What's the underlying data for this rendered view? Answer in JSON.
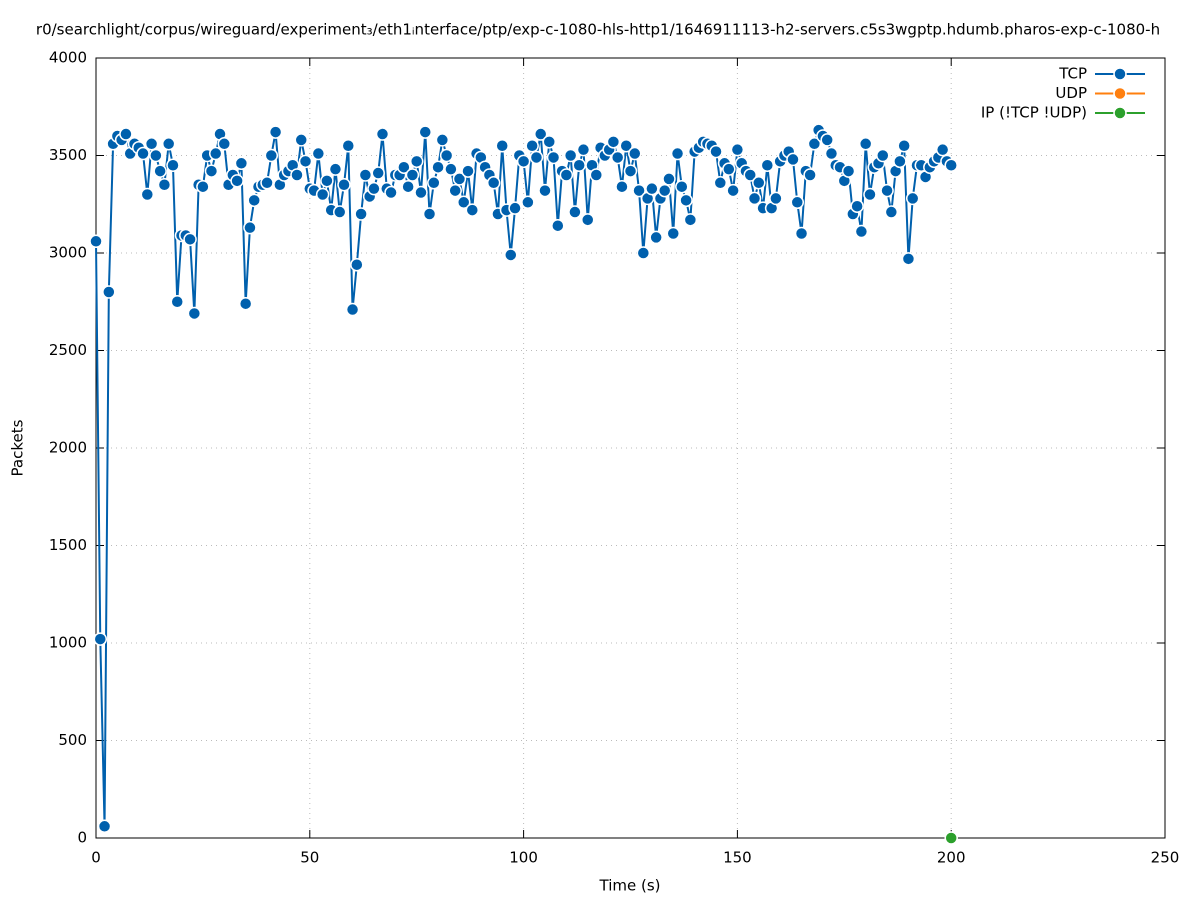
{
  "chart_data": {
    "type": "line",
    "title": "r0/searchlight/corpus/wireguard/experiment₃/eth1ᵢnterface/ptp/exp-c-1080-hls-http1/1646911113-h2-servers.c5s3wgptp.hdumb.pharos-exp-c-1080-h",
    "x_label": "Time (s)",
    "y_label": "Packets",
    "xlim": [
      0,
      250
    ],
    "xticks": [
      0,
      50,
      100,
      150,
      200,
      250
    ],
    "ylim": [
      0,
      4000
    ],
    "yticks": [
      0,
      500,
      1000,
      1500,
      2000,
      2500,
      3000,
      3500,
      4000
    ],
    "grid": true,
    "legend": "top-right",
    "series": [
      {
        "name": "TCP",
        "color": "#0060ad",
        "x": [
          0,
          1,
          2,
          3,
          4,
          5,
          6,
          7,
          8,
          9,
          10,
          11,
          12,
          13,
          14,
          15,
          16,
          17,
          18,
          19,
          20,
          21,
          22,
          23,
          24,
          25,
          26,
          27,
          28,
          29,
          30,
          31,
          32,
          33,
          34,
          35,
          36,
          37,
          38,
          39,
          40,
          41,
          42,
          43,
          44,
          45,
          46,
          47,
          48,
          49,
          50,
          51,
          52,
          53,
          54,
          55,
          56,
          57,
          58,
          59,
          60,
          61,
          62,
          63,
          64,
          65,
          66,
          67,
          68,
          69,
          70,
          71,
          72,
          73,
          74,
          75,
          76,
          77,
          78,
          79,
          80,
          81,
          82,
          83,
          84,
          85,
          86,
          87,
          88,
          89,
          90,
          91,
          92,
          93,
          94,
          95,
          96,
          97,
          98,
          99,
          100,
          101,
          102,
          103,
          104,
          105,
          106,
          107,
          108,
          109,
          110,
          111,
          112,
          113,
          114,
          115,
          116,
          117,
          118,
          119,
          120,
          121,
          122,
          123,
          124,
          125,
          126,
          127,
          128,
          129,
          130,
          131,
          132,
          133,
          134,
          135,
          136,
          137,
          138,
          139,
          140,
          141,
          142,
          143,
          144,
          145,
          146,
          147,
          148,
          149,
          150,
          151,
          152,
          153,
          154,
          155,
          156,
          157,
          158,
          159,
          160,
          161,
          162,
          163,
          164,
          165,
          166,
          167,
          168,
          169,
          170,
          171,
          172,
          173,
          174,
          175,
          176,
          177,
          178,
          179,
          180,
          181,
          182,
          183,
          184,
          185,
          186,
          187,
          188,
          189,
          190,
          191,
          192,
          193,
          194,
          195,
          196,
          197,
          198,
          199,
          200
        ],
        "values": [
          3060,
          1020,
          60,
          2800,
          3560,
          3600,
          3580,
          3610,
          3510,
          3560,
          3540,
          3510,
          3300,
          3560,
          3500,
          3420,
          3350,
          3560,
          3450,
          2750,
          3090,
          3090,
          3070,
          2690,
          3350,
          3340,
          3500,
          3420,
          3510,
          3610,
          3560,
          3350,
          3400,
          3370,
          3460,
          2740,
          3130,
          3270,
          3340,
          3350,
          3360,
          3500,
          3620,
          3350,
          3400,
          3420,
          3450,
          3400,
          3580,
          3470,
          3330,
          3320,
          3510,
          3300,
          3370,
          3220,
          3430,
          3210,
          3350,
          3550,
          2710,
          2940,
          3200,
          3400,
          3290,
          3330,
          3410,
          3610,
          3330,
          3310,
          3400,
          3400,
          3440,
          3340,
          3400,
          3470,
          3310,
          3620,
          3200,
          3360,
          3440,
          3580,
          3500,
          3430,
          3320,
          3380,
          3260,
          3420,
          3220,
          3510,
          3490,
          3440,
          3400,
          3360,
          3200,
          3550,
          3220,
          2990,
          3230,
          3500,
          3470,
          3260,
          3550,
          3490,
          3610,
          3320,
          3570,
          3490,
          3140,
          3420,
          3400,
          3500,
          3210,
          3450,
          3530,
          3170,
          3450,
          3400,
          3540,
          3500,
          3530,
          3570,
          3490,
          3340,
          3550,
          3420,
          3510,
          3320,
          3000,
          3280,
          3330,
          3080,
          3280,
          3320,
          3380,
          3100,
          3510,
          3340,
          3270,
          3170,
          3520,
          3540,
          3570,
          3560,
          3550,
          3520,
          3360,
          3460,
          3430,
          3320,
          3530,
          3460,
          3420,
          3400,
          3280,
          3360,
          3230,
          3450,
          3230,
          3280,
          3470,
          3500,
          3520,
          3480,
          3260,
          3100,
          3420,
          3400,
          3560,
          3630,
          3600,
          3580,
          3510,
          3450,
          3440,
          3370,
          3420,
          3200,
          3240,
          3110,
          3560,
          3300,
          3440,
          3460,
          3500,
          3320,
          3210,
          3420,
          3470,
          3550,
          2970,
          3280,
          3450,
          3450,
          3390,
          3440,
          3470,
          3490,
          3530,
          3470,
          3450
        ]
      },
      {
        "name": "UDP",
        "color": "#ff7f0e",
        "x": [],
        "values": []
      },
      {
        "name": "IP (!TCP  !UDP)",
        "color": "#2ca02c",
        "x": [
          200
        ],
        "values": [
          0
        ]
      }
    ]
  }
}
